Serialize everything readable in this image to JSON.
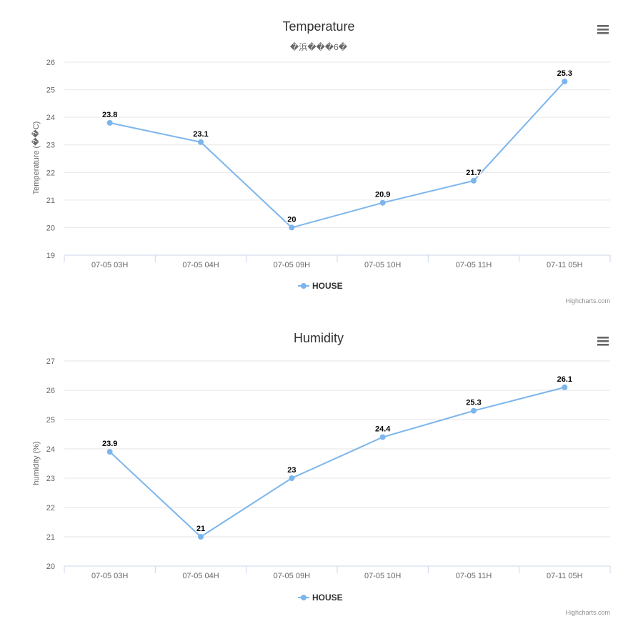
{
  "credits": "Highcharts.com",
  "menu_icon": "hamburger-menu-icon",
  "colors": {
    "series": "#7cb5ec",
    "grid": "#e6e6e6",
    "axis_line": "#ccd6eb",
    "menu": "#666666"
  },
  "chart_data": [
    {
      "type": "line",
      "title": "Temperature",
      "subtitle": "�浜���6�",
      "xlabel": "",
      "ylabel": "Temperature (��C)",
      "ylim": [
        19,
        26
      ],
      "yticks": [
        "19",
        "20",
        "21",
        "22",
        "23",
        "24",
        "25",
        "26"
      ],
      "categories": [
        "07-05 03H",
        "07-05 04H",
        "07-05 09H",
        "07-05 10H",
        "07-05 11H",
        "07-11 05H"
      ],
      "series": [
        {
          "name": "HOUSE",
          "values": [
            23.8,
            23.1,
            20,
            20.9,
            21.7,
            25.3
          ],
          "labels": [
            "23.8",
            "23.1",
            "20",
            "20.9",
            "21.7",
            "25.3"
          ]
        }
      ],
      "legend": "bottom-center",
      "grid": true
    },
    {
      "type": "line",
      "title": "Humidity",
      "subtitle": "",
      "xlabel": "",
      "ylabel": "humidity (%)",
      "ylim": [
        20,
        27
      ],
      "yticks": [
        "20",
        "21",
        "22",
        "23",
        "24",
        "25",
        "26",
        "27"
      ],
      "categories": [
        "07-05 03H",
        "07-05 04H",
        "07-05 09H",
        "07-05 10H",
        "07-05 11H",
        "07-11 05H"
      ],
      "series": [
        {
          "name": "HOUSE",
          "values": [
            23.9,
            21,
            23,
            24.4,
            25.3,
            26.1
          ],
          "labels": [
            "23.9",
            "21",
            "23",
            "24.4",
            "25.3",
            "26.1"
          ]
        }
      ],
      "legend": "bottom-center",
      "grid": true
    }
  ]
}
